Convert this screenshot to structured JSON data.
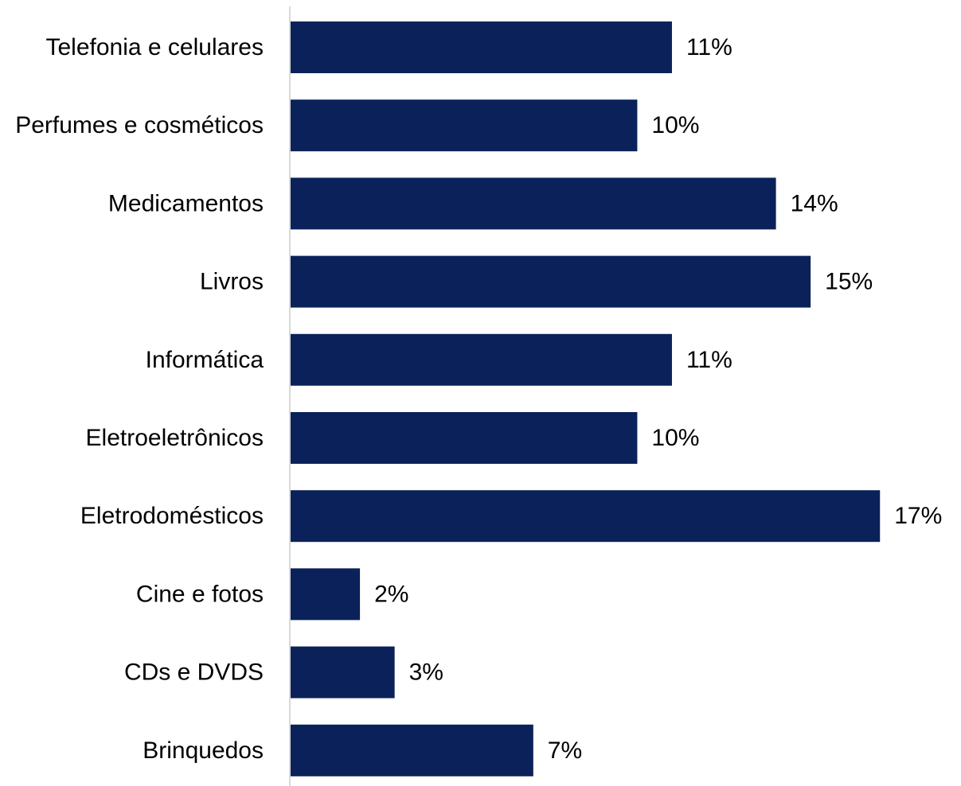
{
  "chart_data": {
    "type": "bar",
    "orientation": "horizontal",
    "categories": [
      "Telefonia e celulares",
      "Perfumes e cosméticos",
      "Medicamentos",
      "Livros",
      "Informática",
      "Eletroeletrônicos",
      "Eletrodomésticos",
      "Cine e fotos",
      "CDs e DVDS",
      "Brinquedos"
    ],
    "values": [
      11,
      10,
      14,
      15,
      11,
      10,
      17,
      2,
      3,
      7
    ],
    "value_labels": [
      "11%",
      "10%",
      "14%",
      "15%",
      "11%",
      "10%",
      "17%",
      "2%",
      "3%",
      "7%"
    ],
    "xlim": [
      0,
      17.5
    ],
    "title": "",
    "xlabel": "",
    "ylabel": "",
    "grid": false,
    "bar_color": "#0A2259",
    "axis_color": "#D9D9D9"
  }
}
